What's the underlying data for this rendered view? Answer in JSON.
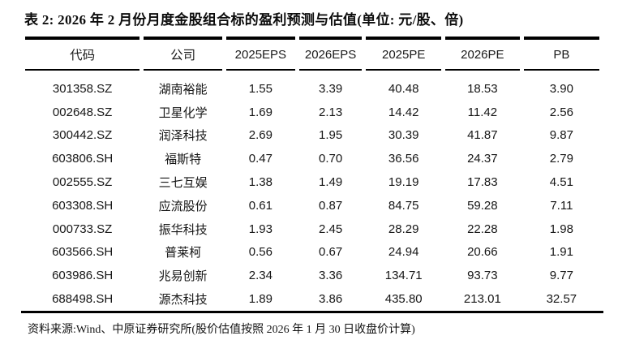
{
  "title": "表 2: 2026 年 2 月份月度金股组合标的盈利预测与估值(单位: 元/股、倍)",
  "table": {
    "columns": [
      "代码",
      "公司",
      "2025EPS",
      "2026EPS",
      "2025PE",
      "2026PE",
      "PB"
    ],
    "rows": [
      [
        "301358.SZ",
        "湖南裕能",
        "1.55",
        "3.39",
        "40.48",
        "18.53",
        "3.90"
      ],
      [
        "002648.SZ",
        "卫星化学",
        "1.69",
        "2.13",
        "14.42",
        "11.42",
        "2.56"
      ],
      [
        "300442.SZ",
        "润泽科技",
        "2.69",
        "1.95",
        "30.39",
        "41.87",
        "9.87"
      ],
      [
        "603806.SH",
        "福斯特",
        "0.47",
        "0.70",
        "36.56",
        "24.37",
        "2.79"
      ],
      [
        "002555.SZ",
        "三七互娱",
        "1.38",
        "1.49",
        "19.19",
        "17.83",
        "4.51"
      ],
      [
        "603308.SH",
        "应流股份",
        "0.61",
        "0.87",
        "84.75",
        "59.28",
        "7.11"
      ],
      [
        "000733.SZ",
        "振华科技",
        "1.93",
        "2.45",
        "28.29",
        "22.28",
        "1.98"
      ],
      [
        "603566.SH",
        "普莱柯",
        "0.56",
        "0.67",
        "24.94",
        "20.66",
        "1.91"
      ],
      [
        "603986.SH",
        "兆易创新",
        "2.34",
        "3.36",
        "134.71",
        "93.73",
        "9.77"
      ],
      [
        "688498.SH",
        "源杰科技",
        "1.89",
        "3.86",
        "435.80",
        "213.01",
        "32.57"
      ]
    ]
  },
  "footer": "资料来源:Wind、中原证券研究所(股价估值按照 2026 年 1 月 30 日收盘价计算)",
  "colors": {
    "text": "#1a1a1a",
    "border": "#000000",
    "background": "#ffffff"
  }
}
